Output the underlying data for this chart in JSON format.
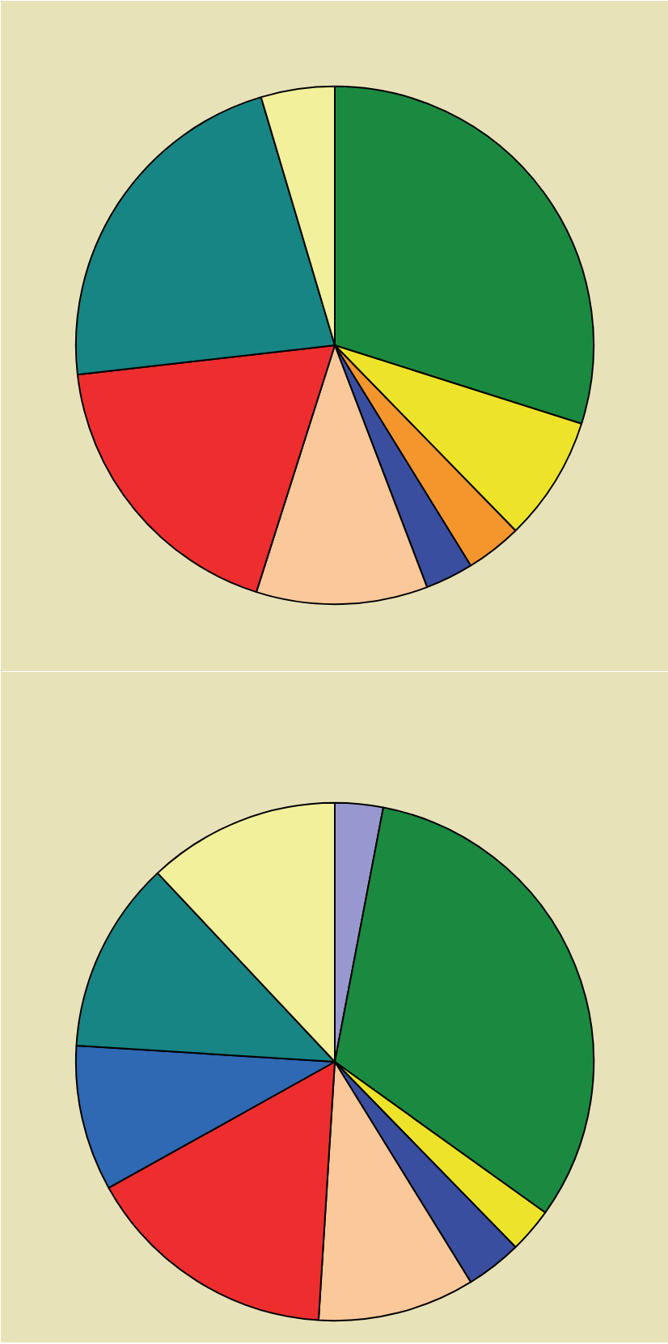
{
  "chart_data": [
    {
      "type": "pie",
      "categories": [
        null,
        null,
        null,
        null,
        null,
        null,
        null,
        null
      ],
      "values": [
        29.9,
        7.8,
        3.5,
        3.0,
        10.7,
        18.3,
        22.2,
        4.6
      ],
      "colors": [
        "#1a8a40",
        "#ede42a",
        "#f5962d",
        "#3a4ea0",
        "#fbc89a",
        "#ee2e2e",
        "#178584",
        "#f3f09c"
      ],
      "legend": false
    },
    {
      "type": "pie",
      "categories": [
        null,
        null,
        null,
        null,
        null,
        null,
        null,
        null,
        null
      ],
      "values": [
        3.0,
        31.9,
        2.8,
        3.5,
        9.8,
        15.9,
        9.1,
        12.0,
        12.0
      ],
      "colors": [
        "#9898d0",
        "#1a8a40",
        "#ede42a",
        "#3a4ea0",
        "#fbc89a",
        "#ee2e2e",
        "#2f68b3",
        "#178584",
        "#f3f09c"
      ],
      "legend": false
    }
  ]
}
